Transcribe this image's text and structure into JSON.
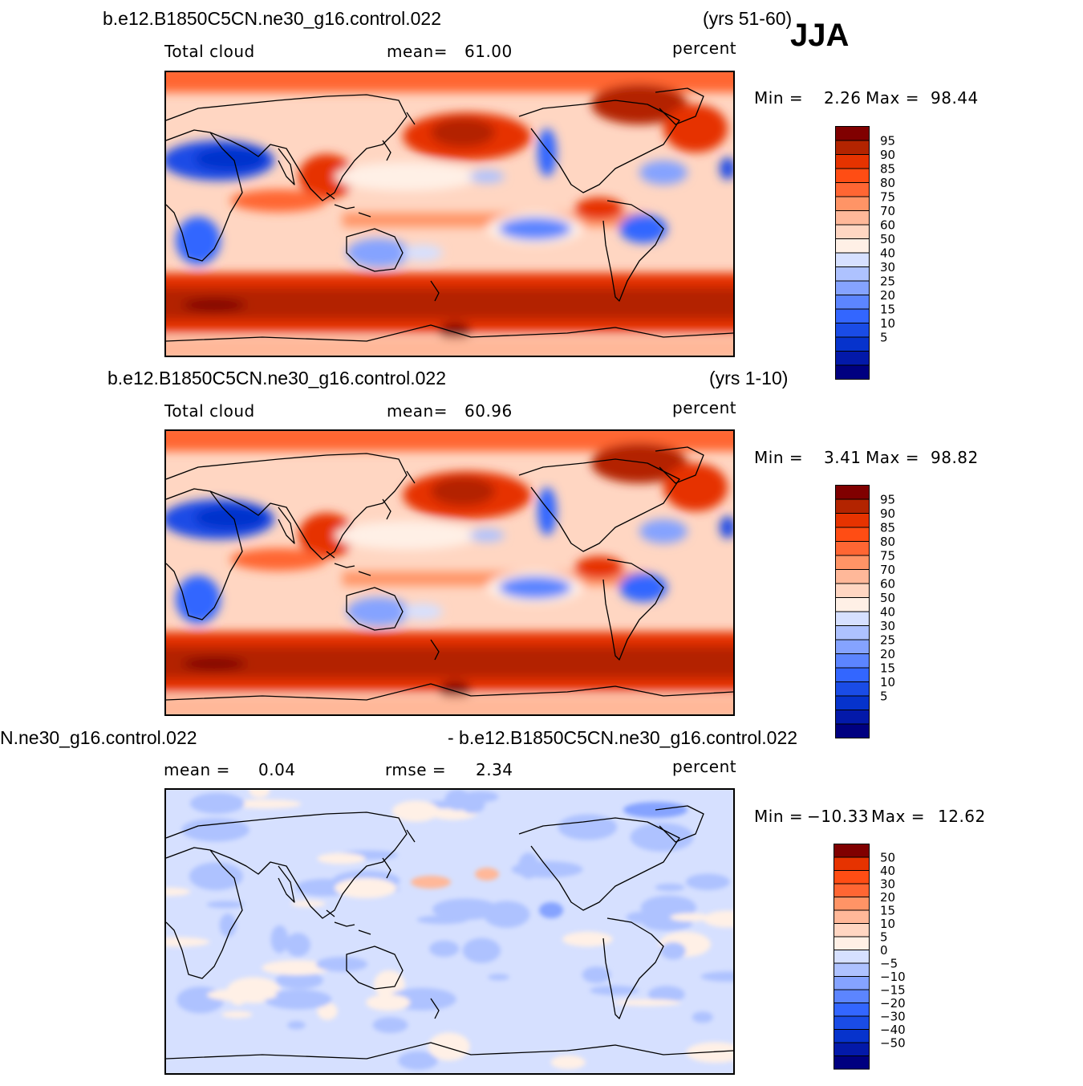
{
  "season": "JJA",
  "colors": {
    "abs_scale": [
      "#000080",
      "#0319a9",
      "#0633cc",
      "#1a4ce6",
      "#3366ff",
      "#5c85ff",
      "#85a3ff",
      "#aec2ff",
      "#d6e0ff",
      "#fff0e6",
      "#ffd6c2",
      "#ffb899",
      "#ff9466",
      "#ff6633",
      "#ff4d14",
      "#e63300",
      "#b32400",
      "#800000"
    ],
    "diff_scale": [
      "#000080",
      "#0319a9",
      "#0633cc",
      "#1a4ce6",
      "#3366ff",
      "#5c85ff",
      "#85a3ff",
      "#aec2ff",
      "#d6e0ff",
      "#fff0e6",
      "#ffd6c2",
      "#ffb899",
      "#ff9466",
      "#ff6633",
      "#ff4d14",
      "#e63300",
      "#800000"
    ]
  },
  "panels": [
    {
      "case_name": "b.e12.B1850C5CN.ne30_g16.control.022",
      "years": "(yrs 51-60)",
      "variable": "Total cloud",
      "stat1_label": "mean=",
      "stat1_value": "61.00",
      "units": "percent",
      "min_label": "Min =",
      "min_value": "2.26",
      "max_label": "Max =",
      "max_value": "98.44",
      "legend_labels": [
        "95",
        "90",
        "85",
        "80",
        "75",
        "70",
        "60",
        "50",
        "40",
        "30",
        "25",
        "20",
        "15",
        "10",
        "5"
      ]
    },
    {
      "case_name": "b.e12.B1850C5CN.ne30_g16.control.022",
      "years": "(yrs 1-10)",
      "variable": "Total cloud",
      "stat1_label": "mean=",
      "stat1_value": "60.96",
      "units": "percent",
      "min_label": "Min =",
      "min_value": "3.41",
      "max_label": "Max =",
      "max_value": "98.82",
      "legend_labels": [
        "95",
        "90",
        "85",
        "80",
        "75",
        "70",
        "60",
        "50",
        "40",
        "30",
        "25",
        "20",
        "15",
        "10",
        "5"
      ]
    },
    {
      "case_name_left": "N.ne30_g16.control.022",
      "case_name_right": "- b.e12.B1850C5CN.ne30_g16.control.022",
      "stat1_label": "mean =",
      "stat1_value": "0.04",
      "stat2_label": "rmse =",
      "stat2_value": "2.34",
      "units": "percent",
      "min_label": "Min =",
      "min_value": "−10.33",
      "max_label": "Max =",
      "max_value": "12.62",
      "legend_labels": [
        "50",
        "40",
        "30",
        "20",
        "15",
        "10",
        "5",
        "0",
        "−5",
        "−10",
        "−15",
        "−20",
        "−30",
        "−40",
        "−50"
      ]
    }
  ]
}
